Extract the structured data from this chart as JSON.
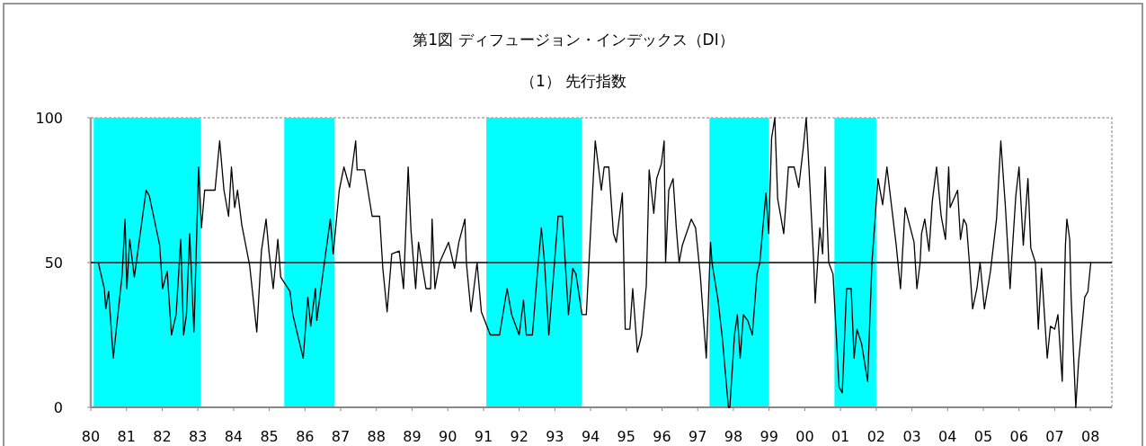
{
  "chart_data": {
    "type": "line",
    "title": "第1図 ディフュージョン・インデックス（DI）",
    "subtitle": "（1） 先行指数",
    "x": [
      1980.21,
      1980.38,
      1980.42,
      1980.5,
      1980.63,
      1980.88,
      1980.96,
      1981.01,
      1981.09,
      1981.22,
      1981.55,
      1981.64,
      1981.93,
      1982.01,
      1982.14,
      1982.26,
      1982.39,
      1982.52,
      1982.6,
      1982.68,
      1982.77,
      1982.89,
      1983.02,
      1983.1,
      1983.19,
      1983.48,
      1983.61,
      1983.73,
      1983.86,
      1983.94,
      1984.03,
      1984.11,
      1984.23,
      1984.45,
      1984.65,
      1984.78,
      1984.91,
      1984.99,
      1985.11,
      1985.24,
      1985.32,
      1985.58,
      1985.66,
      1985.95,
      1986.08,
      1986.16,
      1986.29,
      1986.33,
      1986.5,
      1986.71,
      1986.79,
      1986.96,
      1987.09,
      1987.25,
      1987.42,
      1987.46,
      1987.67,
      1987.88,
      1988.09,
      1988.18,
      1988.3,
      1988.43,
      1988.64,
      1988.76,
      1988.89,
      1988.97,
      1989.1,
      1989.18,
      1989.27,
      1989.39,
      1989.52,
      1989.56,
      1989.64,
      1989.77,
      1990.02,
      1990.19,
      1990.31,
      1990.48,
      1990.52,
      1990.65,
      1990.82,
      1990.94,
      1991.19,
      1991.45,
      1991.66,
      1991.79,
      1992.0,
      1992.12,
      1992.2,
      1992.37,
      1992.5,
      1992.62,
      1992.71,
      1992.83,
      1993.09,
      1993.21,
      1993.38,
      1993.5,
      1993.59,
      1993.76,
      1993.88,
      1994.05,
      1994.13,
      1994.3,
      1994.38,
      1994.51,
      1994.64,
      1994.72,
      1994.89,
      1994.97,
      1995.1,
      1995.18,
      1995.31,
      1995.43,
      1995.56,
      1995.64,
      1995.77,
      1995.85,
      1995.98,
      1996.06,
      1996.1,
      1996.19,
      1996.31,
      1996.4,
      1996.48,
      1996.57,
      1996.82,
      1996.94,
      1997.07,
      1997.24,
      1997.36,
      1997.4,
      1997.57,
      1997.69,
      1997.86,
      1997.9,
      1998.03,
      1998.11,
      1998.19,
      1998.28,
      1998.4,
      1998.53,
      1998.66,
      1998.74,
      1998.91,
      1998.99,
      1999.07,
      1999.16,
      1999.24,
      1999.41,
      1999.49,
      1999.54,
      1999.7,
      1999.83,
      1999.96,
      2000.04,
      2000.12,
      2000.25,
      2000.29,
      2000.42,
      2000.5,
      2000.57,
      2000.67,
      2000.79,
      2000.96,
      2001.05,
      2001.17,
      2001.3,
      2001.38,
      2001.46,
      2001.59,
      2001.76,
      2001.88,
      2002.05,
      2002.18,
      2002.3,
      2002.56,
      2002.68,
      2002.81,
      2003.06,
      2003.14,
      2003.23,
      2003.27,
      2003.36,
      2003.48,
      2003.57,
      2003.69,
      2003.82,
      2003.94,
      2004.03,
      2004.07,
      2004.28,
      2004.36,
      2004.45,
      2004.53,
      2004.61,
      2004.7,
      2004.82,
      2004.91,
      2005.03,
      2005.2,
      2005.37,
      2005.49,
      2005.62,
      2005.75,
      2005.79,
      2005.91,
      2006.0,
      2006.12,
      2006.25,
      2006.33,
      2006.46,
      2006.54,
      2006.63,
      2006.79,
      2006.88,
      2007.0,
      2007.09,
      2007.21,
      2007.3,
      2007.34,
      2007.42,
      2007.46,
      2007.59,
      2007.67,
      2007.84,
      2007.93,
      2008.01
    ],
    "series": [
      {
        "color": "#000000",
        "values": [
          50,
          41,
          34,
          40,
          17,
          46,
          65,
          41,
          58,
          45,
          75,
          73,
          56,
          41,
          47,
          25,
          32,
          58,
          25,
          32,
          60,
          26,
          83,
          62,
          75,
          75,
          92,
          75,
          66,
          83,
          69,
          75,
          63,
          49,
          26,
          54,
          65,
          54,
          41,
          58,
          45,
          40,
          32,
          17,
          38,
          28,
          41,
          30,
          46,
          65,
          53,
          75,
          83,
          76,
          92,
          82,
          82,
          66,
          66,
          48,
          33,
          53,
          54,
          41,
          83,
          61,
          41,
          57,
          50,
          41,
          41,
          65,
          41,
          50,
          57,
          48,
          57,
          65,
          50,
          33,
          50,
          33,
          25,
          25,
          41,
          32,
          25,
          37,
          25,
          25,
          45,
          62,
          50,
          25,
          66,
          66,
          32,
          48,
          46,
          32,
          32,
          73,
          92,
          75,
          83,
          83,
          60,
          57,
          74,
          27,
          27,
          41,
          19,
          25,
          42,
          82,
          67,
          79,
          84,
          92,
          50,
          75,
          79,
          62,
          50,
          56,
          65,
          62,
          46,
          17,
          57,
          50,
          37,
          24,
          0,
          0,
          25,
          32,
          17,
          32,
          30,
          25,
          46,
          50,
          74,
          60,
          93,
          100,
          72,
          60,
          74,
          83,
          83,
          76,
          90,
          100,
          82,
          50,
          36,
          62,
          53,
          83,
          50,
          46,
          7,
          5,
          41,
          41,
          17,
          27,
          22,
          9,
          50,
          79,
          70,
          83,
          56,
          41,
          69,
          57,
          41,
          50,
          60,
          65,
          54,
          71,
          83,
          66,
          58,
          83,
          69,
          75,
          58,
          65,
          63,
          50,
          34,
          41,
          50,
          34,
          47,
          65,
          92,
          69,
          41,
          50,
          73,
          83,
          56,
          79,
          55,
          50,
          27,
          48,
          17,
          28,
          27,
          32,
          9,
          56,
          65,
          58,
          38,
          0,
          16,
          38,
          40,
          50
        ]
      }
    ],
    "xlim": [
      1980,
      2008.6
    ],
    "xticks": [
      {
        "value": 1980,
        "label": "80"
      },
      {
        "value": 1981,
        "label": "81"
      },
      {
        "value": 1982,
        "label": "82"
      },
      {
        "value": 1983,
        "label": "83"
      },
      {
        "value": 1984,
        "label": "84"
      },
      {
        "value": 1985,
        "label": "85"
      },
      {
        "value": 1986,
        "label": "86"
      },
      {
        "value": 1987,
        "label": "87"
      },
      {
        "value": 1988,
        "label": "88"
      },
      {
        "value": 1989,
        "label": "89"
      },
      {
        "value": 1990,
        "label": "90"
      },
      {
        "value": 1991,
        "label": "91"
      },
      {
        "value": 1992,
        "label": "92"
      },
      {
        "value": 1993,
        "label": "93"
      },
      {
        "value": 1994,
        "label": "94"
      },
      {
        "value": 1995,
        "label": "95"
      },
      {
        "value": 1996,
        "label": "96"
      },
      {
        "value": 1997,
        "label": "97"
      },
      {
        "value": 1998,
        "label": "98"
      },
      {
        "value": 1999,
        "label": "99"
      },
      {
        "value": 2000,
        "label": "00"
      },
      {
        "value": 2001,
        "label": "01"
      },
      {
        "value": 2002,
        "label": "02"
      },
      {
        "value": 2003,
        "label": "03"
      },
      {
        "value": 2004,
        "label": "04"
      },
      {
        "value": 2005,
        "label": "05"
      },
      {
        "value": 2006,
        "label": "06"
      },
      {
        "value": 2007,
        "label": "07"
      },
      {
        "value": 2008,
        "label": "08"
      }
    ],
    "ylim": [
      0,
      100
    ],
    "yticks": [
      0,
      50,
      100
    ],
    "ref_lines": [
      {
        "axis": "y",
        "value": 50,
        "color": "#000000"
      }
    ],
    "bands": [
      {
        "axis": "x",
        "from": 1980.08,
        "to": 1983.08,
        "color": "#00ffff"
      },
      {
        "axis": "x",
        "from": 1985.42,
        "to": 1986.83,
        "color": "#00ffff"
      },
      {
        "axis": "x",
        "from": 1991.08,
        "to": 1993.75,
        "color": "#00ffff"
      },
      {
        "axis": "x",
        "from": 1997.33,
        "to": 1999.0,
        "color": "#00ffff"
      },
      {
        "axis": "x",
        "from": 2000.83,
        "to": 2002.0,
        "color": "#00ffff"
      }
    ],
    "grid": false,
    "marker": "none",
    "line_style": "solid"
  }
}
